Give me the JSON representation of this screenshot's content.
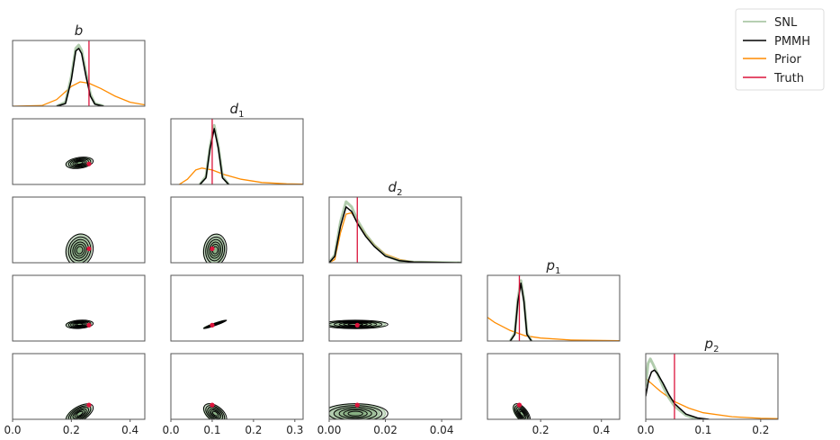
{
  "chart_data": {
    "type": "corner",
    "params": [
      {
        "name": "b",
        "sub": "",
        "xlim": [
          0,
          0.45
        ],
        "ticks": [
          0.0,
          0.2,
          0.4
        ],
        "tick_labels": [
          "0.0",
          "0.2",
          "0.4"
        ],
        "truth": 0.26,
        "center": 0.225,
        "spread": 0.02
      },
      {
        "name": "d",
        "sub": "1",
        "xlim": [
          0,
          0.32
        ],
        "ticks": [
          0.0,
          0.1,
          0.2,
          0.3
        ],
        "tick_labels": [
          "0.0",
          "0.1",
          "0.2",
          "0.3"
        ],
        "truth": 0.1,
        "center": 0.105,
        "spread": 0.012
      },
      {
        "name": "d",
        "sub": "2",
        "xlim": [
          0,
          0.047
        ],
        "ticks": [
          0.0,
          0.02,
          0.04
        ],
        "tick_labels": [
          "0.00",
          "0.02",
          "0.04"
        ],
        "truth": 0.01,
        "center": 0.009,
        "spread": 0.005
      },
      {
        "name": "p",
        "sub": "1",
        "xlim": [
          0.025,
          0.46
        ],
        "ticks": [
          0.2,
          0.4
        ],
        "tick_labels": [
          "0.2",
          "0.4"
        ],
        "truth": 0.13,
        "center": 0.135,
        "spread": 0.012
      },
      {
        "name": "p",
        "sub": "2",
        "xlim": [
          0,
          0.23
        ],
        "ticks": [
          0.0,
          0.1,
          0.2
        ],
        "tick_labels": [
          "0.0",
          "0.1",
          "0.2"
        ],
        "truth": 0.05,
        "center": 0.02,
        "spread": 0.015
      }
    ],
    "correlations": {
      "1-0": 0.3,
      "2-0": 0.1,
      "2-1": 0.1,
      "3-0": 0.2,
      "3-1": 0.97,
      "3-2": 0.0,
      "4-0": 0.6,
      "4-1": -0.5,
      "4-2": 0.0,
      "4-3": -0.6
    },
    "marginals": [
      {
        "SNL": {
          "x": [
            0.15,
            0.18,
            0.2,
            0.215,
            0.225,
            0.235,
            0.25,
            0.265,
            0.28,
            0.31
          ],
          "y": [
            0,
            0.06,
            0.45,
            0.88,
            0.93,
            0.85,
            0.5,
            0.18,
            0.04,
            0
          ]
        },
        "PMMH": {
          "x": [
            0.15,
            0.18,
            0.2,
            0.215,
            0.225,
            0.235,
            0.25,
            0.265,
            0.28,
            0.31
          ],
          "y": [
            0,
            0.04,
            0.4,
            0.84,
            0.88,
            0.8,
            0.45,
            0.15,
            0.03,
            0
          ]
        },
        "Prior": {
          "x": [
            0,
            0.1,
            0.15,
            0.2,
            0.23,
            0.26,
            0.3,
            0.35,
            0.4,
            0.45
          ],
          "y": [
            0,
            0.01,
            0.1,
            0.3,
            0.37,
            0.35,
            0.27,
            0.15,
            0.06,
            0.02
          ]
        }
      },
      {
        "SNL": {
          "x": [
            0.07,
            0.085,
            0.095,
            0.105,
            0.115,
            0.125,
            0.14
          ],
          "y": [
            0,
            0.12,
            0.58,
            0.9,
            0.58,
            0.12,
            0
          ]
        },
        "PMMH": {
          "x": [
            0.07,
            0.085,
            0.095,
            0.105,
            0.115,
            0.125,
            0.14
          ],
          "y": [
            0,
            0.1,
            0.55,
            0.85,
            0.55,
            0.1,
            0
          ]
        },
        "Prior": {
          "x": [
            0.02,
            0.04,
            0.06,
            0.075,
            0.1,
            0.13,
            0.17,
            0.22,
            0.28,
            0.32
          ],
          "y": [
            0,
            0.08,
            0.22,
            0.25,
            0.22,
            0.15,
            0.08,
            0.03,
            0.01,
            0.005
          ]
        }
      },
      {
        "SNL": {
          "x": [
            0,
            0.002,
            0.004,
            0.006,
            0.008,
            0.01,
            0.013,
            0.016,
            0.02,
            0.025,
            0.03,
            0.047
          ],
          "y": [
            0,
            0.12,
            0.62,
            0.93,
            0.85,
            0.65,
            0.43,
            0.27,
            0.11,
            0.03,
            0.01,
            0
          ]
        },
        "PMMH": {
          "x": [
            0,
            0.002,
            0.004,
            0.006,
            0.008,
            0.01,
            0.013,
            0.016,
            0.02,
            0.025,
            0.03,
            0.047
          ],
          "y": [
            0,
            0.1,
            0.55,
            0.85,
            0.78,
            0.6,
            0.4,
            0.25,
            0.1,
            0.03,
            0.01,
            0
          ]
        },
        "Prior": {
          "x": [
            0,
            0.002,
            0.004,
            0.006,
            0.008,
            0.01,
            0.013,
            0.016,
            0.02,
            0.025,
            0.03,
            0.047
          ],
          "y": [
            0,
            0.05,
            0.45,
            0.74,
            0.76,
            0.62,
            0.43,
            0.28,
            0.13,
            0.05,
            0.015,
            0
          ]
        }
      },
      {
        "SNL": {
          "x": [
            0.1,
            0.115,
            0.125,
            0.135,
            0.145,
            0.155,
            0.17
          ],
          "y": [
            0,
            0.12,
            0.63,
            0.92,
            0.63,
            0.12,
            0
          ]
        },
        "PMMH": {
          "x": [
            0.1,
            0.115,
            0.125,
            0.135,
            0.145,
            0.155,
            0.17
          ],
          "y": [
            0,
            0.1,
            0.6,
            0.88,
            0.6,
            0.1,
            0
          ]
        },
        "Prior": {
          "x": [
            0.025,
            0.05,
            0.1,
            0.15,
            0.2,
            0.3,
            0.46
          ],
          "y": [
            0.36,
            0.28,
            0.16,
            0.08,
            0.045,
            0.015,
            0.005
          ]
        }
      },
      {
        "SNL": {
          "x": [
            0,
            0.004,
            0.008,
            0.012,
            0.02,
            0.03,
            0.04,
            0.05,
            0.07,
            0.09
          ],
          "y": [
            0.5,
            0.85,
            0.92,
            0.85,
            0.7,
            0.5,
            0.33,
            0.2,
            0.06,
            0
          ]
        },
        "PMMH": {
          "x": [
            0,
            0.005,
            0.01,
            0.015,
            0.02,
            0.03,
            0.04,
            0.05,
            0.07,
            0.09,
            0.11
          ],
          "y": [
            0.35,
            0.6,
            0.72,
            0.75,
            0.7,
            0.55,
            0.38,
            0.24,
            0.08,
            0.02,
            0
          ]
        },
        "Prior": {
          "x": [
            0,
            0.025,
            0.05,
            0.075,
            0.1,
            0.15,
            0.2,
            0.23
          ],
          "y": [
            0.62,
            0.43,
            0.27,
            0.17,
            0.1,
            0.04,
            0.015,
            0.01
          ]
        }
      }
    ],
    "legend": {
      "placement": "top-right",
      "entries": [
        "SNL",
        "PMMH",
        "Prior",
        "Truth"
      ]
    },
    "colors": {
      "SNL": "#9dbf98",
      "SNL_fill": "#7fa878",
      "PMMH": "#000000",
      "Prior": "#ff8c00",
      "Truth": "#dc143c"
    },
    "grid": false
  }
}
